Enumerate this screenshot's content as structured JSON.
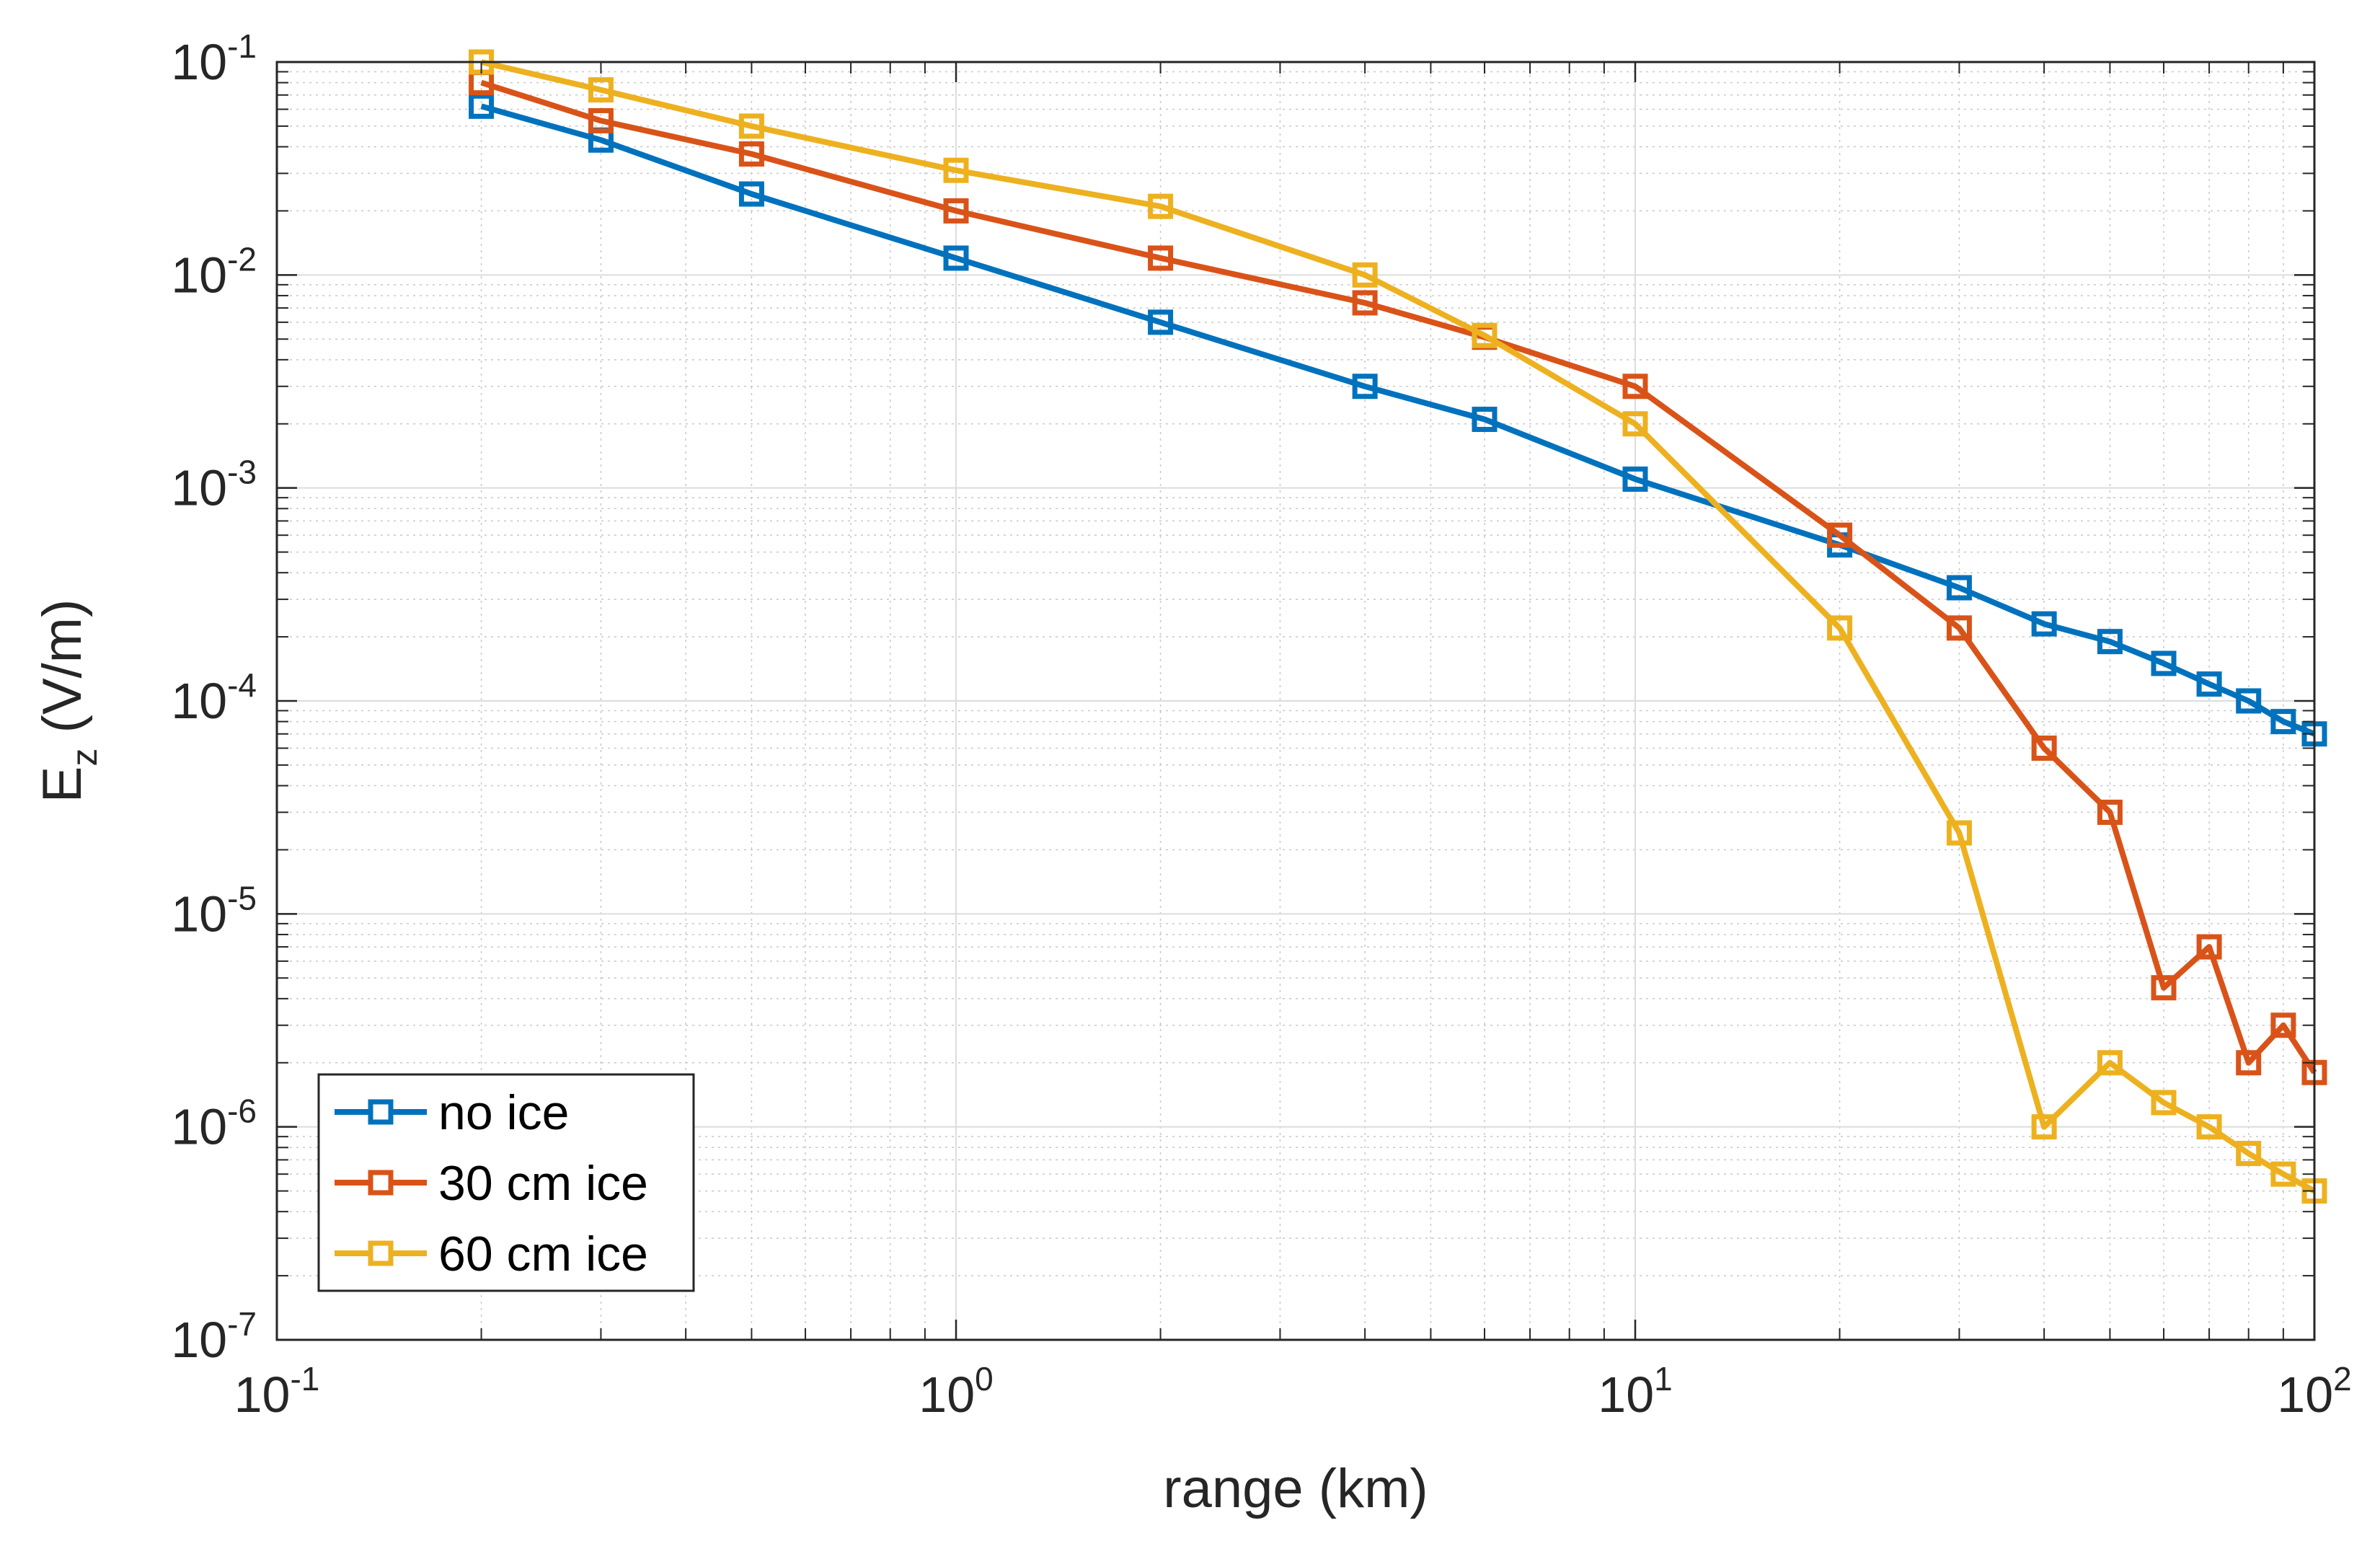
{
  "chart_data": {
    "type": "line",
    "xscale": "log",
    "yscale": "log",
    "xlabel": "range (km)",
    "ylabel": {
      "base": "E",
      "subscript": "z",
      "unit": " (V/m)"
    },
    "xlim": [
      0.1,
      100
    ],
    "ylim": [
      1e-07,
      0.1
    ],
    "grid": true,
    "minor_grid": true,
    "x_ticks": [
      {
        "value": 0.1,
        "base": "10",
        "exp": "-1"
      },
      {
        "value": 1,
        "base": "10",
        "exp": "0"
      },
      {
        "value": 10,
        "base": "10",
        "exp": "1"
      },
      {
        "value": 100,
        "base": "10",
        "exp": "2"
      }
    ],
    "y_ticks": [
      {
        "value": 1e-07,
        "base": "10",
        "exp": "-7"
      },
      {
        "value": 1e-06,
        "base": "10",
        "exp": "-6"
      },
      {
        "value": 1e-05,
        "base": "10",
        "exp": "-5"
      },
      {
        "value": 0.0001,
        "base": "10",
        "exp": "-4"
      },
      {
        "value": 0.001,
        "base": "10",
        "exp": "-3"
      },
      {
        "value": 0.01,
        "base": "10",
        "exp": "-2"
      },
      {
        "value": 0.1,
        "base": "10",
        "exp": "-1"
      }
    ],
    "legend_position": "bottom-left",
    "series": [
      {
        "name": "no ice",
        "color": "#0072BD",
        "marker": "square",
        "x": [
          0.2,
          0.3,
          0.5,
          1,
          2,
          4,
          6,
          10,
          20,
          30,
          40,
          50,
          60,
          70,
          80,
          90,
          100
        ],
        "y": [
          0.062,
          0.043,
          0.024,
          0.012,
          0.006,
          0.003,
          0.0021,
          0.0011,
          0.00054,
          0.00034,
          0.00023,
          0.00019,
          0.00015,
          0.00012,
          0.0001,
          8e-05,
          7e-05
        ]
      },
      {
        "name": "30 cm ice",
        "color": "#D95319",
        "marker": "square",
        "x": [
          0.2,
          0.3,
          0.5,
          1,
          2,
          4,
          6,
          10,
          20,
          30,
          40,
          50,
          60,
          70,
          80,
          90,
          100
        ],
        "y": [
          0.08,
          0.053,
          0.037,
          0.02,
          0.012,
          0.0074,
          0.0051,
          0.003,
          0.0006,
          0.00022,
          6e-05,
          3e-05,
          4.5e-06,
          7e-06,
          2e-06,
          3e-06,
          1.8e-06
        ]
      },
      {
        "name": "60 cm ice",
        "color": "#EDB120",
        "marker": "square",
        "x": [
          0.2,
          0.3,
          0.5,
          1,
          2,
          4,
          6,
          10,
          20,
          30,
          40,
          50,
          60,
          70,
          80,
          90,
          100
        ],
        "y": [
          0.1,
          0.074,
          0.05,
          0.031,
          0.021,
          0.01,
          0.0052,
          0.002,
          0.00022,
          2.4e-05,
          1e-06,
          2e-06,
          1.3e-06,
          1e-06,
          7.5e-07,
          6e-07,
          5e-07
        ]
      }
    ]
  }
}
